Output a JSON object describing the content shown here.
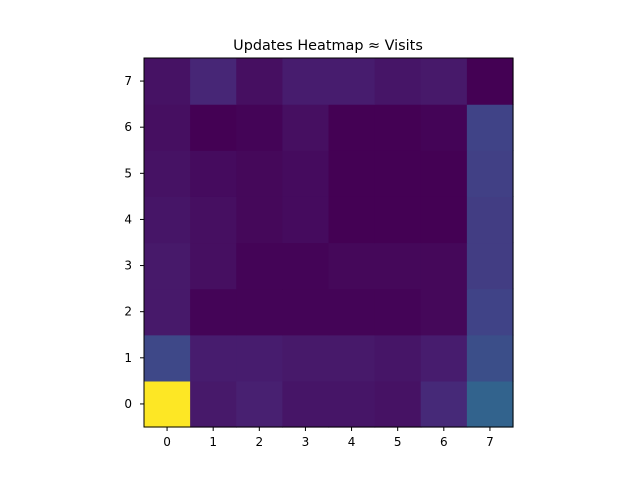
{
  "chart_data": {
    "type": "heatmap",
    "title": "Updates Heatmap ≈ Visits",
    "xlabel": "",
    "ylabel": "",
    "x_categories": [
      "0",
      "1",
      "2",
      "3",
      "4",
      "5",
      "6",
      "7"
    ],
    "y_categories": [
      "0",
      "1",
      "2",
      "3",
      "4",
      "5",
      "6",
      "7"
    ],
    "y_order": "bottom-to-top",
    "colormap": "viridis",
    "value_range": [
      0,
      1
    ],
    "values": [
      [
        1.0,
        0.07,
        0.09,
        0.06,
        0.06,
        0.05,
        0.12,
        0.32
      ],
      [
        0.22,
        0.08,
        0.08,
        0.07,
        0.07,
        0.06,
        0.08,
        0.24
      ],
      [
        0.07,
        0.01,
        0.01,
        0.01,
        0.01,
        0.01,
        0.02,
        0.2
      ],
      [
        0.07,
        0.04,
        0.01,
        0.01,
        0.02,
        0.02,
        0.02,
        0.18
      ],
      [
        0.06,
        0.04,
        0.02,
        0.03,
        0.0,
        0.0,
        0.0,
        0.18
      ],
      [
        0.05,
        0.03,
        0.02,
        0.03,
        0.0,
        0.0,
        0.0,
        0.19
      ],
      [
        0.04,
        0.0,
        0.01,
        0.04,
        0.0,
        0.0,
        0.01,
        0.2
      ],
      [
        0.05,
        0.11,
        0.04,
        0.08,
        0.08,
        0.06,
        0.07,
        0.0
      ]
    ],
    "grid": false,
    "legend": "none"
  }
}
